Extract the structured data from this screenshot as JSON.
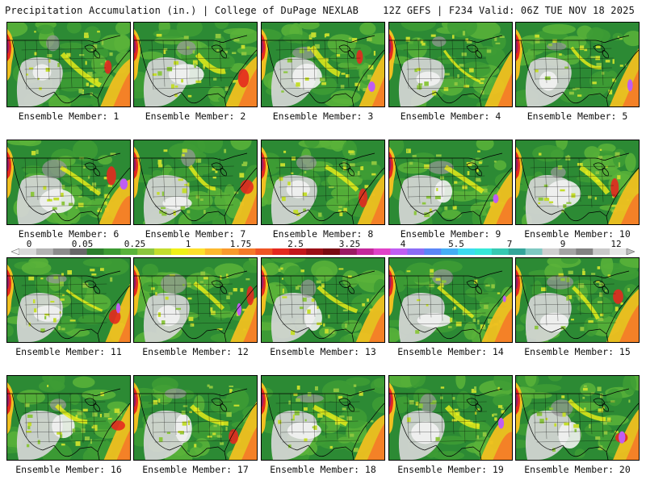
{
  "header": {
    "left": "Precipitation Accumulation (in.) | College of DuPage NEXLAB",
    "right": "12Z GEFS | F234 Valid: 06Z TUE NOV 18 2025"
  },
  "colorbar": {
    "tick_labels": [
      "0",
      "0.05",
      "0.25",
      "1",
      "1.75",
      "2.5",
      "3.25",
      "4",
      "5.5",
      "7",
      "9",
      "12"
    ],
    "colors": [
      "#d9d9d9",
      "#b3b3b3",
      "#8c8c8c",
      "#686868",
      "#2c7f2c",
      "#3c9a32",
      "#5ab33a",
      "#8cc63f",
      "#c4dd2e",
      "#f0f018",
      "#fde02c",
      "#fcb92e",
      "#f99a2c",
      "#f57a28",
      "#ee5424",
      "#e4291f",
      "#c3161b",
      "#9b0f16",
      "#7a0a12",
      "#9b1a63",
      "#c4279b",
      "#e042c8",
      "#c05df2",
      "#8c6cf6",
      "#5b86f7",
      "#45aef5",
      "#3ddbf0",
      "#36e8d8",
      "#37c9b2",
      "#33a59a",
      "#7fc9c2",
      "#cfcfcf",
      "#a4a4a4",
      "#828282",
      "#c9c9c9",
      "#e6e6e6"
    ]
  },
  "members": [
    {
      "label": "Ensemble Member: 1"
    },
    {
      "label": "Ensemble Member: 2"
    },
    {
      "label": "Ensemble Member: 3"
    },
    {
      "label": "Ensemble Member: 4"
    },
    {
      "label": "Ensemble Member: 5"
    },
    {
      "label": "Ensemble Member: 6"
    },
    {
      "label": "Ensemble Member: 7"
    },
    {
      "label": "Ensemble Member: 8"
    },
    {
      "label": "Ensemble Member: 9"
    },
    {
      "label": "Ensemble Member: 10"
    },
    {
      "label": "Ensemble Member: 11"
    },
    {
      "label": "Ensemble Member: 12"
    },
    {
      "label": "Ensemble Member: 13"
    },
    {
      "label": "Ensemble Member: 14"
    },
    {
      "label": "Ensemble Member: 15"
    },
    {
      "label": "Ensemble Member: 16"
    },
    {
      "label": "Ensemble Member: 17"
    },
    {
      "label": "Ensemble Member: 18"
    },
    {
      "label": "Ensemble Member: 19"
    },
    {
      "label": "Ensemble Member: 20"
    }
  ]
}
